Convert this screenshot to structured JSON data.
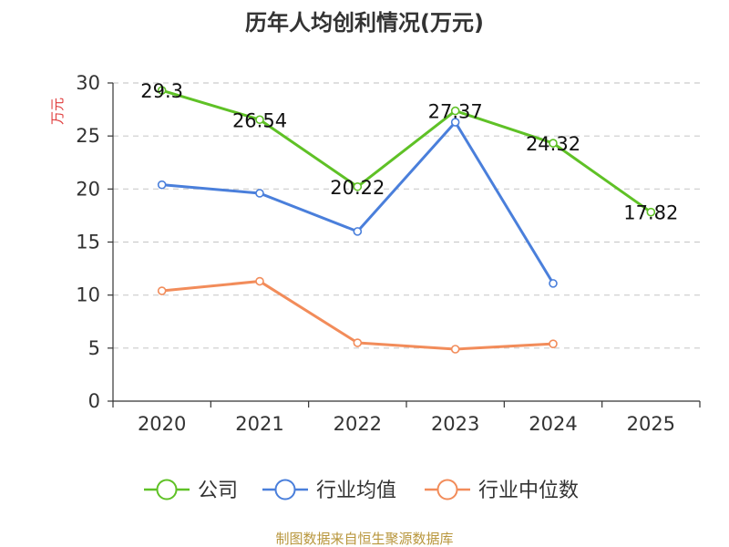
{
  "chart_data": {
    "type": "line",
    "title": "历年人均创利情况(万元)",
    "ylabel": "万元",
    "xlabel": "",
    "categories": [
      "2020",
      "2021",
      "2022",
      "2023",
      "2024",
      "2025"
    ],
    "ylim": [
      0,
      30
    ],
    "yticks": [
      0,
      5,
      10,
      15,
      20,
      25,
      30
    ],
    "grid": "horizontal-dashed",
    "legend_position": "bottom",
    "series": [
      {
        "name": "公司",
        "color": "#5fc126",
        "values": [
          29.3,
          26.54,
          20.22,
          27.37,
          24.32,
          17.82
        ],
        "labels": [
          "29.3",
          "26.54",
          "20.22",
          "27.37",
          "24.32",
          "17.82"
        ]
      },
      {
        "name": "行业均值",
        "color": "#4a7fdb",
        "values": [
          20.4,
          19.6,
          16.0,
          26.3,
          11.1,
          null
        ]
      },
      {
        "name": "行业中位数",
        "color": "#f28c5a",
        "values": [
          10.4,
          11.3,
          5.5,
          4.9,
          5.4,
          null
        ]
      }
    ],
    "source": "制图数据来自恒生聚源数据库"
  }
}
